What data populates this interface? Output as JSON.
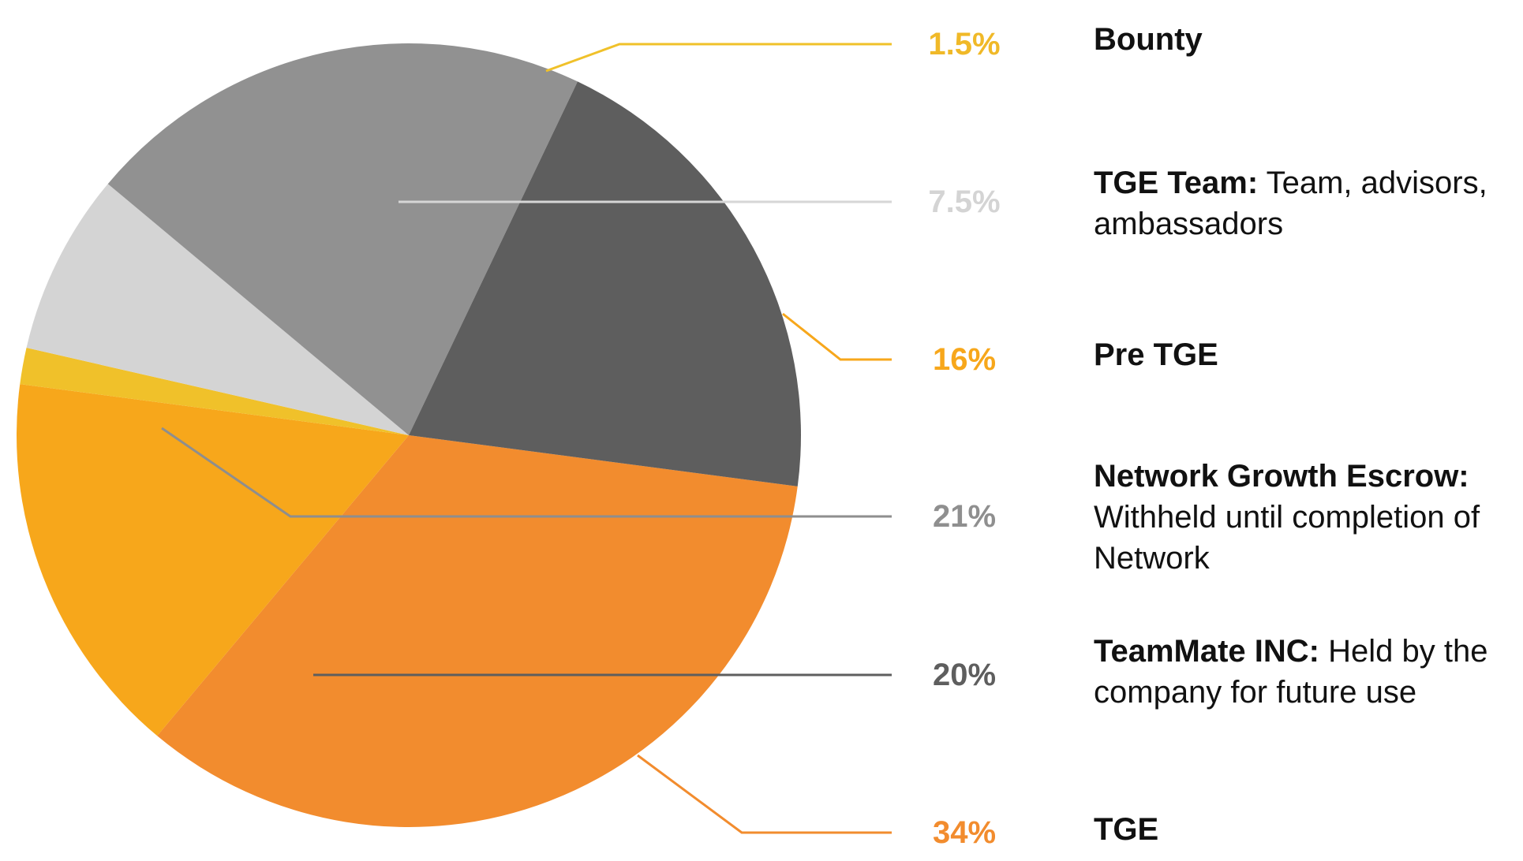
{
  "chart_data": {
    "type": "pie",
    "slices": [
      {
        "key": "tge",
        "value": 34,
        "value_label": "34%",
        "name": "TGE",
        "description": "",
        "color": "#F28C2E",
        "label_color": "#F28C2E",
        "leader_color": "#F28C2E"
      },
      {
        "key": "pre",
        "value": 16,
        "value_label": "16%",
        "name": "Pre TGE",
        "description": "",
        "color": "#F7A71B",
        "label_color": "#F7A71B",
        "leader_color": "#F7A71B"
      },
      {
        "key": "bounty",
        "value": 1.5,
        "value_label": "1.5%",
        "name": "Bounty",
        "description": "",
        "color": "#F0C12A",
        "label_color": "#F0B928",
        "leader_color": "#F0C12A"
      },
      {
        "key": "team",
        "value": 7.5,
        "value_label": "7.5%",
        "name": "TGE Team:",
        "description": " Team, advisors, ambassadors",
        "color": "#D4D4D4",
        "label_color": "#D4D4D4",
        "leader_color": "#D6D6D6"
      },
      {
        "key": "escrow",
        "value": 21,
        "value_label": "21%",
        "name": "Network Growth Escrow:",
        "description": " Withheld until completion of Network",
        "color": "#919191",
        "label_color": "#8F8F8F",
        "leader_color": "#8E8E8E"
      },
      {
        "key": "inc",
        "value": 20,
        "value_label": "20%",
        "name": "TeamMate INC:",
        "description": " Held by the company for future use",
        "color": "#5E5E5E",
        "label_color": "#5E5E5E",
        "leader_color": "#5E5E5E"
      }
    ]
  }
}
